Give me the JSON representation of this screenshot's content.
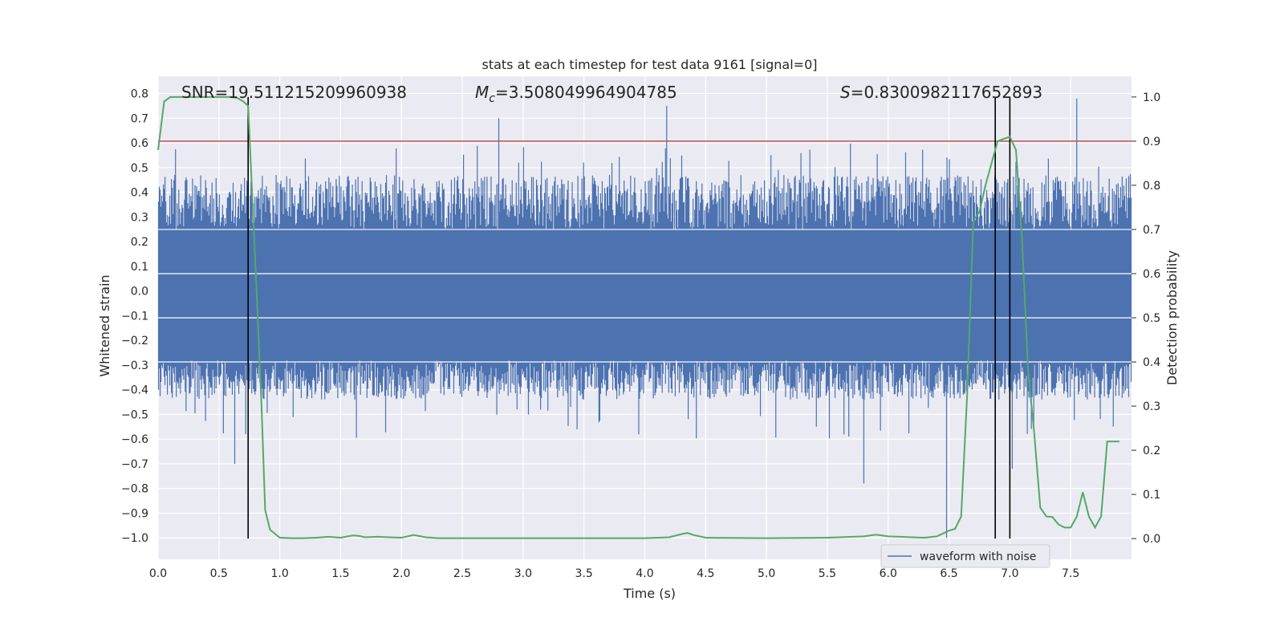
{
  "chart_data": {
    "type": "line",
    "title": "stats at each timestep for test data 9161 [signal=0]",
    "xlabel": "Time (s)",
    "ylabel_left": "Whitened strain",
    "ylabel_right": "Detection probability",
    "xlim": [
      0,
      8
    ],
    "ylim_left": [
      -1.087,
      0.87
    ],
    "ylim_right": [
      -0.047,
      1.047
    ],
    "x_ticks": [
      0,
      0.5,
      1,
      1.5,
      2,
      2.5,
      3,
      3.5,
      4,
      4.5,
      5,
      5.5,
      6,
      6.5,
      7,
      7.5
    ],
    "x_tick_labels": [
      "0.0",
      "0.5",
      "1.0",
      "1.5",
      "2.0",
      "2.5",
      "3.0",
      "3.5",
      "4.0",
      "4.5",
      "5.0",
      "5.5",
      "6.0",
      "6.5",
      "7.0",
      "7.5"
    ],
    "y_left_ticks": [
      -1.0,
      -0.9,
      -0.8,
      -0.7,
      -0.6,
      -0.5,
      -0.4,
      -0.3,
      -0.2,
      -0.1,
      0.0,
      0.1,
      0.2,
      0.3,
      0.4,
      0.5,
      0.6,
      0.7,
      0.8
    ],
    "y_left_tick_labels": [
      "−1.0",
      "−0.9",
      "−0.8",
      "−0.7",
      "−0.6",
      "−0.5",
      "−0.4",
      "−0.3",
      "−0.2",
      "−0.1",
      "0.0",
      "0.1",
      "0.2",
      "0.3",
      "0.4",
      "0.5",
      "0.6",
      "0.7",
      "0.8"
    ],
    "y_right_ticks": [
      0.0,
      0.1,
      0.2,
      0.3,
      0.4,
      0.5,
      0.6,
      0.7,
      0.8,
      0.9,
      1.0
    ],
    "y_right_tick_labels": [
      "0.0",
      "0.1",
      "0.2",
      "0.3",
      "0.4",
      "0.5",
      "0.6",
      "0.7",
      "0.8",
      "0.9",
      "1.0"
    ],
    "annotations": {
      "snr": "SNR=19.511215209960938",
      "mc_symbol": "M",
      "mc_sub": "c",
      "mc_value": "=3.508049964904785",
      "s_symbol": "S",
      "s_value": "=0.8300982117652893"
    },
    "threshold": {
      "axis": "right",
      "value": 0.9,
      "color": "#c44e52"
    },
    "vertical_lines": [
      0.74,
      6.88,
      7.0
    ],
    "series": [
      {
        "name": "waveform with noise",
        "axis": "left",
        "color": "#4c72b0",
        "style": "dense-noise",
        "band": [
          -0.28,
          0.25
        ],
        "spike_max": 0.78,
        "spike_min": -1.0
      },
      {
        "name": "Detection probability",
        "axis": "right",
        "color": "#55a868",
        "x": [
          0.0,
          0.05,
          0.1,
          0.15,
          0.2,
          0.3,
          0.4,
          0.5,
          0.6,
          0.65,
          0.7,
          0.74,
          0.8,
          0.85,
          0.88,
          0.92,
          1.0,
          1.1,
          1.2,
          1.3,
          1.4,
          1.5,
          1.6,
          1.65,
          1.7,
          1.8,
          1.9,
          2.0,
          2.1,
          2.2,
          2.25,
          2.3,
          2.5,
          3.0,
          3.5,
          4.0,
          4.2,
          4.3,
          4.35,
          4.4,
          4.5,
          5.0,
          5.5,
          5.8,
          5.9,
          6.0,
          6.1,
          6.2,
          6.3,
          6.4,
          6.5,
          6.55,
          6.6,
          6.65,
          6.7,
          6.75,
          6.8,
          6.9,
          6.95,
          7.0,
          7.05,
          7.1,
          7.15,
          7.2,
          7.25,
          7.3,
          7.35,
          7.4,
          7.45,
          7.5,
          7.55,
          7.6,
          7.65,
          7.7,
          7.75,
          7.8,
          7.85,
          7.9
        ],
        "values": [
          0.88,
          0.99,
          1.0,
          1.0,
          1.0,
          1.0,
          1.0,
          1.0,
          1.0,
          0.998,
          0.99,
          0.98,
          0.62,
          0.3,
          0.065,
          0.02,
          0.002,
          0.001,
          0.001,
          0.002,
          0.004,
          0.002,
          0.007,
          0.006,
          0.003,
          0.004,
          0.003,
          0.002,
          0.008,
          0.003,
          0.002,
          0.001,
          0.001,
          0.001,
          0.001,
          0.001,
          0.003,
          0.01,
          0.013,
          0.008,
          0.002,
          0.001,
          0.002,
          0.005,
          0.009,
          0.005,
          0.004,
          0.003,
          0.002,
          0.005,
          0.018,
          0.022,
          0.05,
          0.33,
          0.72,
          0.74,
          0.8,
          0.9,
          0.905,
          0.91,
          0.88,
          0.68,
          0.38,
          0.24,
          0.07,
          0.05,
          0.049,
          0.032,
          0.025,
          0.025,
          0.05,
          0.105,
          0.05,
          0.025,
          0.05,
          0.22,
          0.22,
          0.22
        ]
      }
    ],
    "legend": {
      "entries": [
        "waveform with noise"
      ],
      "placement": "lower-right"
    }
  }
}
